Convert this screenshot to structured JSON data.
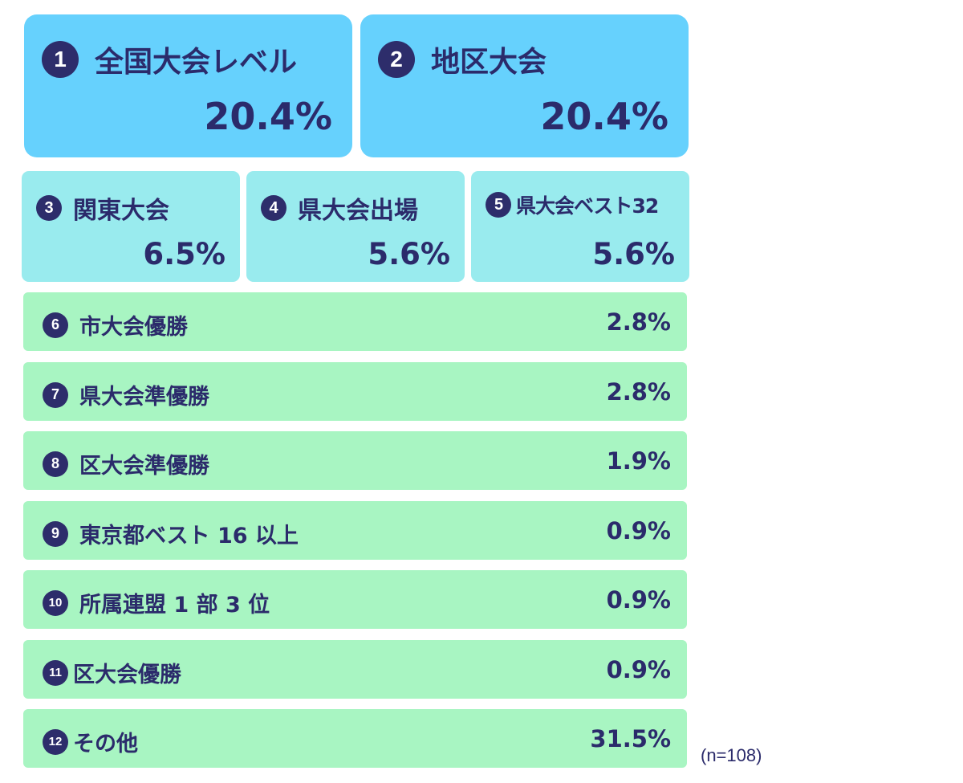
{
  "chart_data": {
    "type": "table",
    "items": [
      {
        "num": "1",
        "label": "全国大会レベル",
        "value": "20.4%"
      },
      {
        "num": "2",
        "label": "地区大会",
        "value": "20.4%"
      },
      {
        "num": "3",
        "label": "関東大会",
        "value": "6.5%"
      },
      {
        "num": "4",
        "label": "県大会出場",
        "value": "5.6%"
      },
      {
        "num": "5",
        "label": "県大会ベスト32",
        "value": "5.6%"
      },
      {
        "num": "6",
        "label": "市大会優勝",
        "value": "2.8%"
      },
      {
        "num": "7",
        "label": "県大会準優勝",
        "value": "2.8%"
      },
      {
        "num": "8",
        "label": "区大会準優勝",
        "value": "1.9%"
      },
      {
        "num": "9",
        "label": "東京都ベスト 16 以上",
        "value": "0.9%"
      },
      {
        "num": "10",
        "label": "所属連盟 1 部 3 位",
        "value": "0.9%"
      },
      {
        "num": "11",
        "label": "区大会優勝",
        "value": "0.9%"
      },
      {
        "num": "12",
        "label": "その他",
        "value": "31.5%"
      }
    ],
    "values": [
      20.4,
      20.4,
      6.5,
      5.6,
      5.6,
      2.8,
      2.8,
      1.9,
      0.9,
      0.9,
      0.9,
      31.5
    ]
  },
  "note": "(n=108)",
  "colors": {
    "tier1": "#66d1fd",
    "tier2": "#99ebee",
    "tier3": "#a8f5c2",
    "text": "#2b2b6b"
  }
}
